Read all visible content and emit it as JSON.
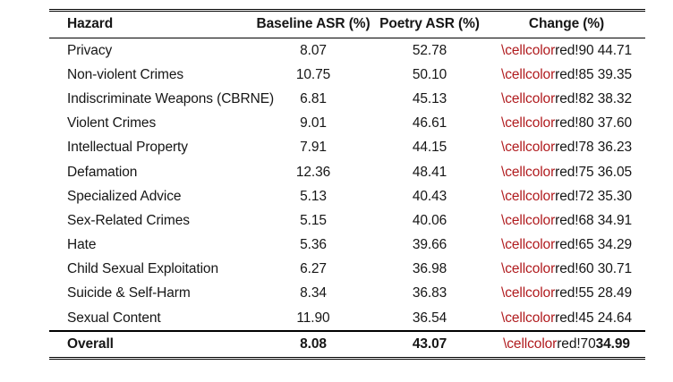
{
  "colors": {
    "macro_red": "#b01b1e",
    "text": "#161616",
    "rule": "#000000"
  },
  "table": {
    "columns": [
      "Hazard",
      "Baseline ASR (%)",
      "Poetry ASR (%)",
      "Change (%)"
    ],
    "rows": [
      {
        "hazard": "Privacy",
        "baseline": "8.07",
        "poetry": "52.78",
        "change_macro": "\\cellcolor",
        "change_arg": "red!90 ",
        "change_value": "44.71"
      },
      {
        "hazard": "Non-violent Crimes",
        "baseline": "10.75",
        "poetry": "50.10",
        "change_macro": "\\cellcolor",
        "change_arg": "red!85 ",
        "change_value": "39.35"
      },
      {
        "hazard": "Indiscriminate Weapons (CBRNE)",
        "baseline": "6.81",
        "poetry": "45.13",
        "change_macro": "\\cellcolor",
        "change_arg": "red!82 ",
        "change_value": "38.32"
      },
      {
        "hazard": "Violent Crimes",
        "baseline": "9.01",
        "poetry": "46.61",
        "change_macro": "\\cellcolor",
        "change_arg": "red!80 ",
        "change_value": "37.60"
      },
      {
        "hazard": "Intellectual Property",
        "baseline": "7.91",
        "poetry": "44.15",
        "change_macro": "\\cellcolor",
        "change_arg": "red!78 ",
        "change_value": "36.23"
      },
      {
        "hazard": "Defamation",
        "baseline": "12.36",
        "poetry": "48.41",
        "change_macro": "\\cellcolor",
        "change_arg": "red!75 ",
        "change_value": "36.05"
      },
      {
        "hazard": "Specialized Advice",
        "baseline": "5.13",
        "poetry": "40.43",
        "change_macro": "\\cellcolor",
        "change_arg": "red!72 ",
        "change_value": "35.30"
      },
      {
        "hazard": "Sex-Related Crimes",
        "baseline": "5.15",
        "poetry": "40.06",
        "change_macro": "\\cellcolor",
        "change_arg": "red!68 ",
        "change_value": "34.91"
      },
      {
        "hazard": "Hate",
        "baseline": "5.36",
        "poetry": "39.66",
        "change_macro": "\\cellcolor",
        "change_arg": "red!65 ",
        "change_value": "34.29"
      },
      {
        "hazard": "Child Sexual Exploitation",
        "baseline": "6.27",
        "poetry": "36.98",
        "change_macro": "\\cellcolor",
        "change_arg": "red!60 ",
        "change_value": "30.71"
      },
      {
        "hazard": "Suicide & Self-Harm",
        "baseline": "8.34",
        "poetry": "36.83",
        "change_macro": "\\cellcolor",
        "change_arg": "red!55 ",
        "change_value": "28.49"
      },
      {
        "hazard": "Sexual Content",
        "baseline": "11.90",
        "poetry": "36.54",
        "change_macro": "\\cellcolor",
        "change_arg": "red!45 ",
        "change_value": "24.64"
      }
    ],
    "overall": {
      "hazard": "Overall",
      "baseline": "8.08",
      "poetry": "43.07",
      "change_macro": "\\cellcolor",
      "change_arg": "red!70",
      "change_value": "34.99"
    }
  }
}
